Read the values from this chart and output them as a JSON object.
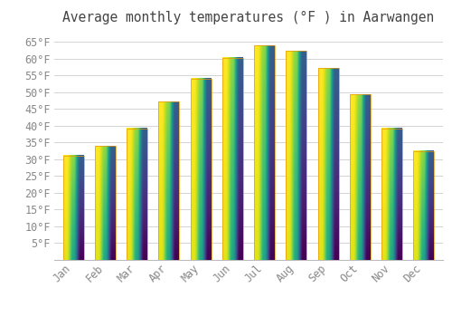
{
  "title": "Average monthly temperatures (°F ) in Aarwangen",
  "months": [
    "Jan",
    "Feb",
    "Mar",
    "Apr",
    "May",
    "Jun",
    "Jul",
    "Aug",
    "Sep",
    "Oct",
    "Nov",
    "Dec"
  ],
  "values": [
    31.1,
    34.0,
    39.2,
    47.1,
    54.0,
    60.3,
    63.9,
    62.2,
    57.2,
    49.3,
    39.2,
    32.5
  ],
  "bar_color_top": "#FFD966",
  "bar_color_bottom": "#F5A623",
  "bar_edge_color": "#E8960A",
  "background_color": "#FFFFFF",
  "grid_color": "#CCCCCC",
  "text_color": "#888888",
  "title_color": "#444444",
  "ylim": [
    0,
    68
  ],
  "yticks": [
    5,
    10,
    15,
    20,
    25,
    30,
    35,
    40,
    45,
    50,
    55,
    60,
    65
  ],
  "ylabel_suffix": "°F",
  "title_fontsize": 10.5,
  "tick_fontsize": 8.5,
  "bar_width": 0.65
}
